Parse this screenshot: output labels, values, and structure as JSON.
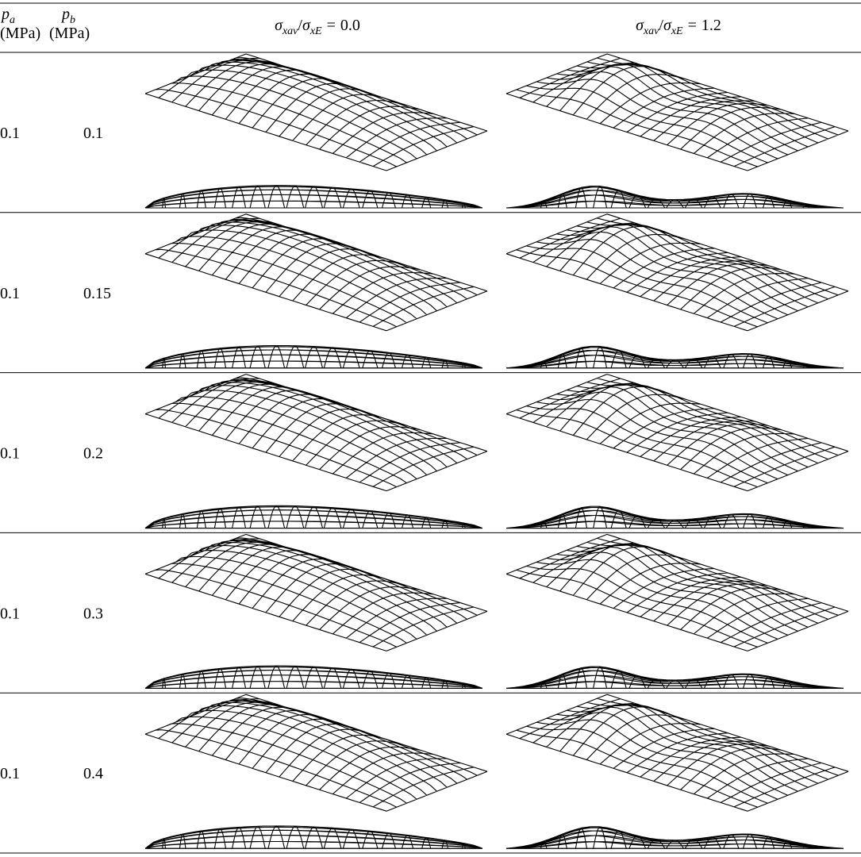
{
  "header": {
    "columns": [
      {
        "symbol": "p",
        "subscript": "a",
        "unit": "(MPa)"
      },
      {
        "symbol": "p",
        "subscript": "b",
        "unit": "(MPa)"
      },
      {
        "symbol": "σ",
        "subscript": "xav",
        "separator": "/",
        "symbol2": "σ",
        "subscript2": "xE",
        "equals": "=",
        "value": "0.0"
      },
      {
        "symbol": "σ",
        "subscript": "xav",
        "separator": "/",
        "symbol2": "σ",
        "subscript2": "xE",
        "equals": "=",
        "value": "1.2"
      }
    ]
  },
  "table": {
    "rows": [
      [
        0.1,
        0.1
      ],
      [
        0.1,
        0.15
      ],
      [
        0.1,
        0.2
      ],
      [
        0.1,
        0.3
      ],
      [
        0.1,
        0.4
      ]
    ]
  }
}
